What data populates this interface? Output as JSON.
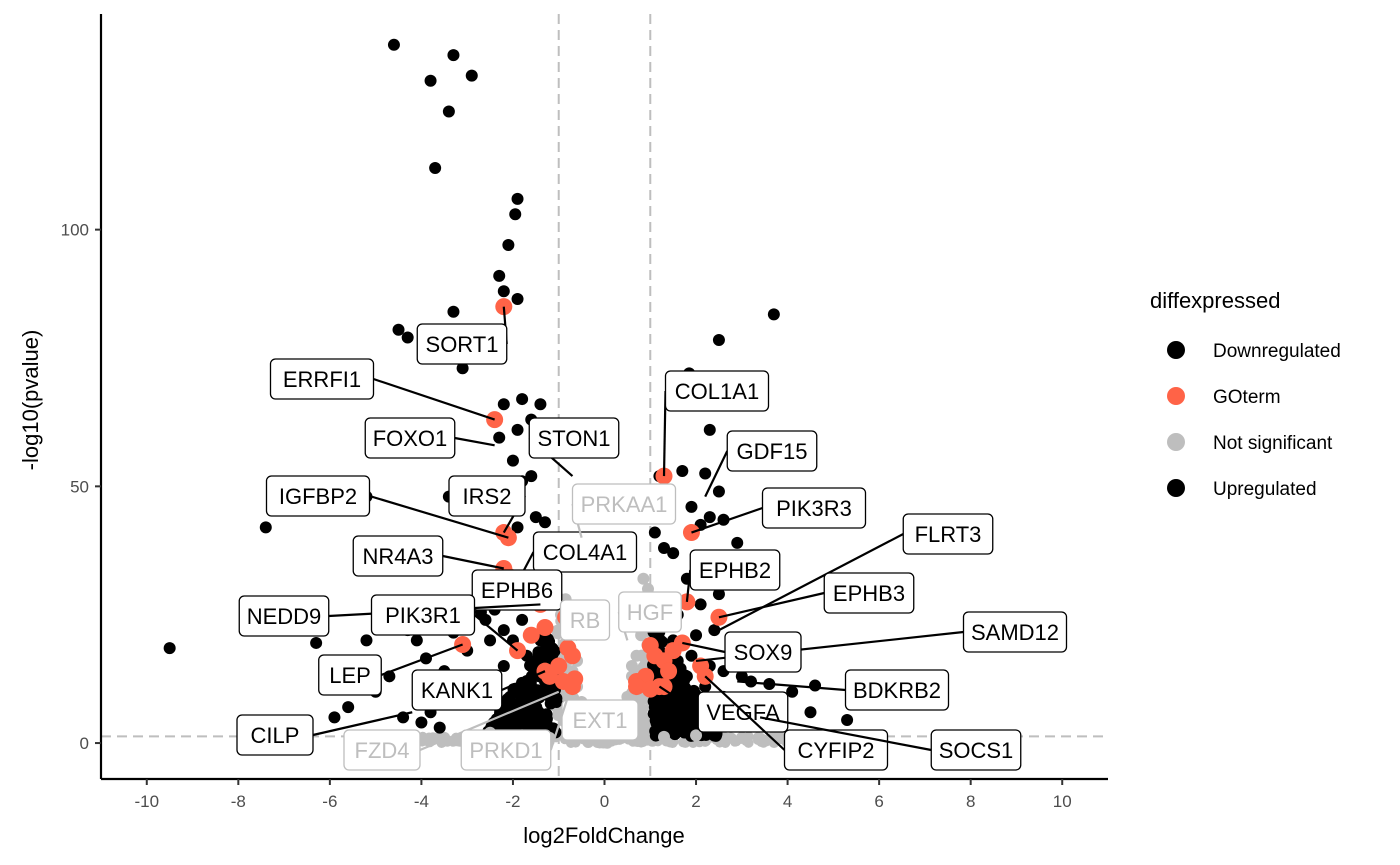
{
  "chart_data": {
    "type": "scatter",
    "title": "",
    "xlabel": "log2FoldChange",
    "ylabel": "-log10(pvalue)",
    "xlim": [
      -11,
      11
    ],
    "ylim": [
      -7,
      142
    ],
    "x_ticks": [
      "-10",
      "-8",
      "-6",
      "-4",
      "-2",
      "0",
      "2",
      "4",
      "6",
      "8",
      "10"
    ],
    "x_tick_values": [
      -10,
      -8,
      -6,
      -4,
      -2,
      0,
      2,
      4,
      6,
      8,
      10
    ],
    "y_ticks": [
      "0",
      "50",
      "100"
    ],
    "y_tick_values": [
      0,
      50,
      100
    ],
    "grid": false,
    "thresholds": {
      "log2fc": [
        -1,
        1
      ],
      "neg_log10_p": 1.3
    },
    "legend": {
      "title": "diffexpressed",
      "placement": "right",
      "entries": [
        {
          "label": "Downregulated",
          "color": "#000000"
        },
        {
          "label": "GOterm",
          "color": "#FF6347"
        },
        {
          "label": "Not significant",
          "color": "#BEBEBE"
        },
        {
          "label": "Upregulated",
          "color": "#000000"
        }
      ]
    },
    "colors": {
      "Downregulated": "#000000",
      "GOterm": "#FF6347",
      "Not significant": "#BEBEBE",
      "Upregulated": "#000000"
    },
    "series": [
      {
        "name": "Downregulated",
        "points": [
          [
            -4.6,
            136
          ],
          [
            -3.3,
            134
          ],
          [
            -3.8,
            129
          ],
          [
            -2.9,
            130
          ],
          [
            -3.4,
            123
          ],
          [
            -3.7,
            112
          ],
          [
            -1.9,
            106
          ],
          [
            -1.95,
            103
          ],
          [
            -2.1,
            97
          ],
          [
            -2.3,
            91
          ],
          [
            -1.9,
            86.5
          ],
          [
            -2.2,
            88
          ],
          [
            -3.3,
            84
          ],
          [
            -4.5,
            80.5
          ],
          [
            -4.3,
            79
          ],
          [
            -3.1,
            73
          ],
          [
            -2.2,
            66
          ],
          [
            -1.8,
            67
          ],
          [
            -1.4,
            66
          ],
          [
            -1.6,
            63
          ],
          [
            -1.9,
            61
          ],
          [
            -2.3,
            59.5
          ],
          [
            -1.5,
            59
          ],
          [
            -2.0,
            55
          ],
          [
            -1.6,
            52
          ],
          [
            -1.8,
            51
          ],
          [
            -2.2,
            46
          ],
          [
            -1.5,
            44
          ],
          [
            -1.9,
            42
          ],
          [
            -1.3,
            43
          ],
          [
            -3.4,
            48
          ],
          [
            -5.2,
            48
          ],
          [
            -7.4,
            42
          ],
          [
            -9.5,
            18.5
          ],
          [
            -6.3,
            19.5
          ],
          [
            -5.2,
            20
          ],
          [
            -4.3,
            22
          ],
          [
            -3.9,
            16.5
          ],
          [
            -4.7,
            13
          ],
          [
            -5.0,
            10
          ],
          [
            -5.6,
            7
          ],
          [
            -5.9,
            5
          ],
          [
            -3.6,
            3
          ],
          [
            -4.0,
            4
          ],
          [
            -4.1,
            20
          ],
          [
            -3.3,
            21.5
          ],
          [
            -3.0,
            18
          ],
          [
            -2.7,
            25.5
          ],
          [
            -2.4,
            26
          ],
          [
            -2.5,
            20
          ],
          [
            -2.6,
            24
          ],
          [
            -2.2,
            22
          ],
          [
            -2.0,
            20
          ],
          [
            -1.8,
            24
          ],
          [
            -1.7,
            17
          ],
          [
            -1.6,
            15
          ],
          [
            -1.5,
            14
          ],
          [
            -1.3,
            12
          ],
          [
            -1.2,
            10
          ],
          [
            -1.1,
            11
          ],
          [
            -1.05,
            8
          ],
          [
            -1.5,
            6
          ],
          [
            -2.3,
            8
          ],
          [
            -2.8,
            12
          ],
          [
            -3.1,
            9
          ],
          [
            -3.5,
            14
          ],
          [
            -3.8,
            6
          ],
          [
            -4.4,
            5
          ],
          [
            -2.2,
            15
          ],
          [
            -1.4,
            20
          ],
          [
            -1.2,
            16
          ]
        ]
      },
      {
        "name": "Upregulated",
        "points": [
          [
            3.7,
            83.5
          ],
          [
            2.5,
            78.5
          ],
          [
            1.85,
            72
          ],
          [
            2.1,
            67
          ],
          [
            2.3,
            61
          ],
          [
            1.2,
            52
          ],
          [
            1.7,
            53
          ],
          [
            2.2,
            52.5
          ],
          [
            2.5,
            49
          ],
          [
            1.9,
            46
          ],
          [
            2.3,
            44
          ],
          [
            2.6,
            43.5
          ],
          [
            2.1,
            42.5
          ],
          [
            2.9,
            39
          ],
          [
            1.1,
            41
          ],
          [
            1.3,
            38
          ],
          [
            1.5,
            37
          ],
          [
            2.2,
            34
          ],
          [
            1.8,
            32
          ],
          [
            2.5,
            29
          ],
          [
            2.1,
            27
          ],
          [
            1.6,
            25
          ],
          [
            2.4,
            22
          ],
          [
            2.0,
            21
          ],
          [
            1.5,
            20
          ],
          [
            1.2,
            18
          ],
          [
            1.1,
            16
          ],
          [
            1.9,
            17
          ],
          [
            2.3,
            15
          ],
          [
            2.6,
            14
          ],
          [
            3.0,
            13
          ],
          [
            3.2,
            12
          ],
          [
            3.6,
            11.5
          ],
          [
            4.6,
            11.2
          ],
          [
            4.1,
            10
          ],
          [
            3.8,
            8
          ],
          [
            4.5,
            6
          ],
          [
            5.3,
            4.5
          ],
          [
            3.4,
            5
          ],
          [
            2.8,
            7
          ],
          [
            1.4,
            12
          ],
          [
            1.7,
            10
          ],
          [
            1.2,
            9
          ],
          [
            1.1,
            7
          ],
          [
            1.5,
            5
          ],
          [
            2.0,
            6
          ],
          [
            2.6,
            9
          ],
          [
            2.2,
            11
          ],
          [
            1.8,
            13
          ],
          [
            1.3,
            14
          ],
          [
            1.6,
            16
          ]
        ]
      },
      {
        "name": "Not significant",
        "points": [
          [
            -0.9,
            22
          ],
          [
            -0.8,
            18
          ],
          [
            -0.7,
            14
          ],
          [
            -0.6,
            11
          ],
          [
            -0.5,
            8
          ],
          [
            -0.4,
            5
          ],
          [
            -0.3,
            3
          ],
          [
            -0.2,
            2
          ],
          [
            -0.1,
            1
          ],
          [
            0.0,
            0.5
          ],
          [
            0.1,
            1
          ],
          [
            0.2,
            2
          ],
          [
            0.3,
            3.5
          ],
          [
            0.4,
            6
          ],
          [
            0.5,
            9
          ],
          [
            0.6,
            13
          ],
          [
            0.7,
            17
          ],
          [
            0.8,
            21
          ],
          [
            0.9,
            26
          ],
          [
            0.95,
            30
          ],
          [
            0.85,
            32
          ],
          [
            -0.95,
            25
          ],
          [
            -0.85,
            28
          ],
          [
            -0.6,
            16
          ],
          [
            0.6,
            15
          ],
          [
            -2.5,
            2
          ],
          [
            -3.5,
            1
          ],
          [
            -4.5,
            0.5
          ],
          [
            -1.8,
            1.5
          ],
          [
            2.0,
            1.5
          ],
          [
            3.0,
            1
          ],
          [
            4.0,
            0.5
          ],
          [
            -1.2,
            1
          ],
          [
            1.3,
            1.2
          ]
        ]
      },
      {
        "name": "GOterm",
        "points": [
          [
            -2.2,
            85
          ],
          [
            -2.4,
            63
          ],
          [
            -2.2,
            41
          ],
          [
            -2.1,
            40
          ],
          [
            -2.2,
            34
          ],
          [
            -2.1,
            32.5
          ],
          [
            -1.4,
            27
          ],
          [
            -0.85,
            24.5
          ],
          [
            -1.3,
            22.5
          ],
          [
            -1.6,
            21
          ],
          [
            -1.9,
            18
          ],
          [
            -3.1,
            19.2
          ],
          [
            -0.8,
            18.5
          ],
          [
            -0.7,
            17
          ],
          [
            -1.0,
            15
          ],
          [
            -1.3,
            14
          ],
          [
            -1.2,
            13
          ],
          [
            -0.9,
            12
          ],
          [
            -0.65,
            12.5
          ],
          [
            -0.7,
            11
          ],
          [
            1.3,
            52
          ],
          [
            1.9,
            41
          ],
          [
            1.8,
            27.5
          ],
          [
            2.5,
            24.5
          ],
          [
            1.7,
            19.5
          ],
          [
            1.5,
            18
          ],
          [
            1.0,
            19
          ],
          [
            1.1,
            17
          ],
          [
            1.3,
            16
          ],
          [
            0.7,
            12
          ],
          [
            0.9,
            13
          ],
          [
            1.4,
            14
          ],
          [
            2.1,
            15
          ],
          [
            2.2,
            13
          ],
          [
            1.2,
            11
          ],
          [
            0.7,
            11
          ],
          [
            1.0,
            10.5
          ],
          [
            1.3,
            11
          ]
        ]
      }
    ],
    "labels": [
      {
        "text": "SORT1",
        "color": "#000000",
        "x": -2.2,
        "y": 85
      },
      {
        "text": "ERRFI1",
        "color": "#000000",
        "x": -2.4,
        "y": 63
      },
      {
        "text": "FOXO1",
        "color": "#000000",
        "x": -2.4,
        "y": 58
      },
      {
        "text": "STON1",
        "color": "#000000",
        "x": -0.7,
        "y": 52
      },
      {
        "text": "IRS2",
        "color": "#000000",
        "x": -2.2,
        "y": 41
      },
      {
        "text": "IGFBP2",
        "color": "#000000",
        "x": -2.1,
        "y": 40
      },
      {
        "text": "COL4A1",
        "color": "#000000",
        "x": -1.8,
        "y": 33
      },
      {
        "text": "NR4A3",
        "color": "#000000",
        "x": -2.2,
        "y": 34
      },
      {
        "text": "EPHB6",
        "color": "#000000",
        "x": -2.1,
        "y": 32.5
      },
      {
        "text": "NEDD9",
        "color": "#000000",
        "x": -1.4,
        "y": 27
      },
      {
        "text": "PIK3R1",
        "color": "#000000",
        "x": -1.9,
        "y": 18
      },
      {
        "text": "LEP",
        "color": "#000000",
        "x": -3.1,
        "y": 19.2
      },
      {
        "text": "KANK1",
        "color": "#000000",
        "x": -1.3,
        "y": 14
      },
      {
        "text": "CILP",
        "color": "#000000",
        "x": -4.2,
        "y": 6
      },
      {
        "text": "PRKAA1",
        "color": "#BEBEBE",
        "x": -0.5,
        "y": 40
      },
      {
        "text": "RB",
        "color": "#BEBEBE",
        "x": -0.6,
        "y": 20
      },
      {
        "text": "HGF",
        "color": "#BEBEBE",
        "x": 0.5,
        "y": 20
      },
      {
        "text": "EXT1",
        "color": "#BEBEBE",
        "x": -0.6,
        "y": 8
      },
      {
        "text": "FZD4",
        "color": "#BEBEBE",
        "x": -1.0,
        "y": 10
      },
      {
        "text": "PRKD1",
        "color": "#BEBEBE",
        "x": -0.8,
        "y": 9
      },
      {
        "text": "COL1A1",
        "color": "#000000",
        "x": 1.3,
        "y": 52
      },
      {
        "text": "GDF15",
        "color": "#000000",
        "x": 2.2,
        "y": 48
      },
      {
        "text": "PIK3R3",
        "color": "#000000",
        "x": 1.9,
        "y": 41
      },
      {
        "text": "FLRT3",
        "color": "#000000",
        "x": 2.5,
        "y": 22
      },
      {
        "text": "EPHB2",
        "color": "#000000",
        "x": 1.8,
        "y": 27.5
      },
      {
        "text": "EPHB3",
        "color": "#000000",
        "x": 2.5,
        "y": 24.5
      },
      {
        "text": "SAMD12",
        "color": "#000000",
        "x": 2.0,
        "y": 16
      },
      {
        "text": "SOX9",
        "color": "#000000",
        "x": 1.7,
        "y": 19.5
      },
      {
        "text": "BDKRB2",
        "color": "#000000",
        "x": 2.9,
        "y": 12
      },
      {
        "text": "VEGFA",
        "color": "#000000",
        "x": 1.2,
        "y": 11
      },
      {
        "text": "CYFIP2",
        "color": "#000000",
        "x": 2.2,
        "y": 13
      },
      {
        "text": "SOCS1",
        "color": "#000000",
        "x": 3.4,
        "y": 5
      }
    ]
  }
}
